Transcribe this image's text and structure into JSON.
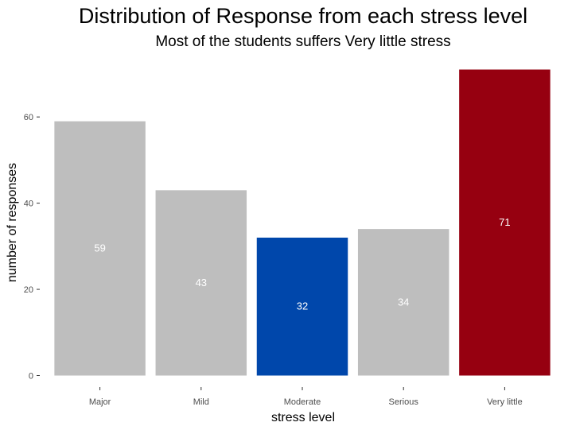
{
  "chart_data": {
    "type": "bar",
    "title": "Distribution of Response from each stress level",
    "subtitle": "Most of the students suffers Very little stress",
    "xlabel": "stress level",
    "ylabel": "number of responses",
    "categories": [
      "Major",
      "Mild",
      "Moderate",
      "Serious",
      "Very little"
    ],
    "values": [
      59,
      43,
      32,
      34,
      71
    ],
    "data_labels": [
      "59",
      "43",
      "32",
      "34",
      "71"
    ],
    "colors": [
      "#bebebe",
      "#bebebe",
      "#0047ab",
      "#bebebe",
      "#960010"
    ],
    "label_color": "#ffffff",
    "yticks": [
      0,
      20,
      40,
      60
    ],
    "ytick_labels": [
      "0",
      "20",
      "40",
      "60"
    ],
    "ylim": [
      0,
      71
    ],
    "grid": false,
    "legend": "none"
  }
}
